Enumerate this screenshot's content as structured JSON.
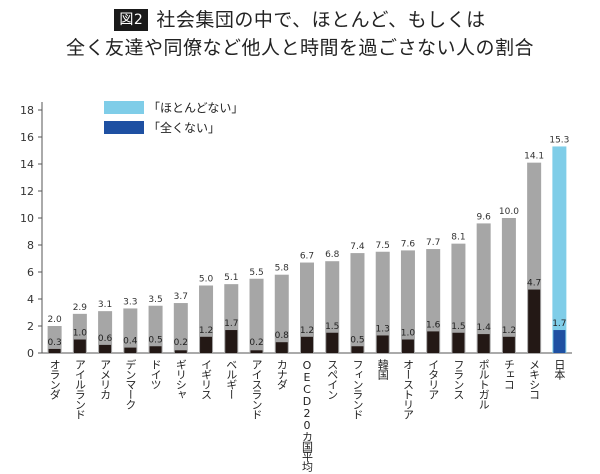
{
  "figure_label": "図2",
  "title_line1": "社会集団の中で、ほとんど、もしくは",
  "title_line2": "全く友達や同僚など他人と時間を過ごさない人の割合",
  "chart_data": {
    "type": "bar",
    "categories": [
      "オランダ",
      "アイルランド",
      "アメリカ",
      "デンマーク",
      "ドイツ",
      "ギリシャ",
      "イギリス",
      "ベルギー",
      "アイスランド",
      "カナダ",
      "OECD20カ国平均",
      "スペイン",
      "フィンランド",
      "韓国",
      "オーストリア",
      "イタリア",
      "フランス",
      "ポルトガル",
      "チェコ",
      "メキシコ",
      "日本"
    ],
    "series": [
      {
        "name": "「ほとんどない」",
        "values": [
          2.0,
          2.9,
          3.1,
          3.3,
          3.5,
          3.7,
          5.0,
          5.1,
          5.5,
          5.8,
          6.7,
          6.8,
          7.4,
          7.5,
          7.6,
          7.7,
          8.1,
          9.6,
          10.0,
          14.1,
          15.3
        ]
      },
      {
        "name": "「全くない」",
        "values": [
          0.3,
          1.0,
          0.6,
          0.4,
          0.5,
          0.2,
          1.2,
          1.7,
          0.2,
          0.8,
          1.2,
          1.5,
          0.5,
          1.3,
          1.0,
          1.6,
          1.5,
          1.4,
          1.2,
          4.7,
          1.7
        ]
      }
    ],
    "ylim": [
      0,
      18
    ],
    "yticks": [
      0,
      2,
      4,
      6,
      8,
      10,
      12,
      14,
      16,
      18
    ],
    "colors": {
      "almost_none": "#a6a6a6",
      "none": "#231815",
      "japan_almost_none": "#7fcde8",
      "japan_none": "#1e50a2"
    },
    "legend_colors": [
      "#7fcde8",
      "#1e50a2"
    ],
    "legend_position": "top-left",
    "grid": false
  }
}
